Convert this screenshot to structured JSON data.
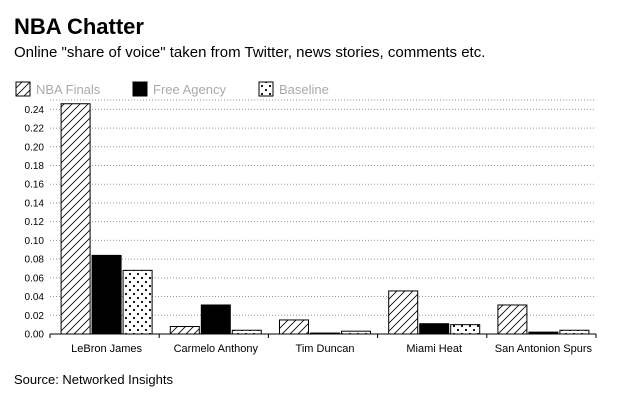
{
  "header": {
    "title": "NBA Chatter",
    "subtitle": "Online \"share of voice\" taken from Twitter, news stories, comments etc."
  },
  "footer": {
    "source": "Source: Networked Insights"
  },
  "chart_data": {
    "type": "bar",
    "title": "NBA Chatter",
    "subtitle": "Online \"share of voice\" taken from Twitter, news stories, comments etc.",
    "xlabel": "",
    "ylabel": "",
    "categories": [
      "LeBron James",
      "Carmelo Anthony",
      "Tim Duncan",
      "Miami Heat",
      "San Antonion Spurs"
    ],
    "series": [
      {
        "name": "NBA Finals",
        "pattern": "diagonal-hatch",
        "values": [
          0.246,
          0.008,
          0.015,
          0.046,
          0.031
        ]
      },
      {
        "name": "Free Agency",
        "pattern": "solid-black",
        "values": [
          0.084,
          0.031,
          0.001,
          0.011,
          0.002
        ]
      },
      {
        "name": "Baseline",
        "pattern": "dots",
        "values": [
          0.068,
          0.004,
          0.003,
          0.01,
          0.004
        ]
      }
    ],
    "ylim": [
      0,
      0.25
    ],
    "yticks": [
      "0.00",
      "0.02",
      "0.04",
      "0.06",
      "0.08",
      "0.10",
      "0.12",
      "0.14",
      "0.16",
      "0.18",
      "0.20",
      "0.22",
      "0.24"
    ],
    "grid": true,
    "grid_style": "dotted",
    "legend_position": "top-left",
    "colors": {
      "bar_stroke": "#000000",
      "solid_fill": "#000000",
      "legend_text": "#aaaaaa",
      "grid": "#999999"
    }
  }
}
